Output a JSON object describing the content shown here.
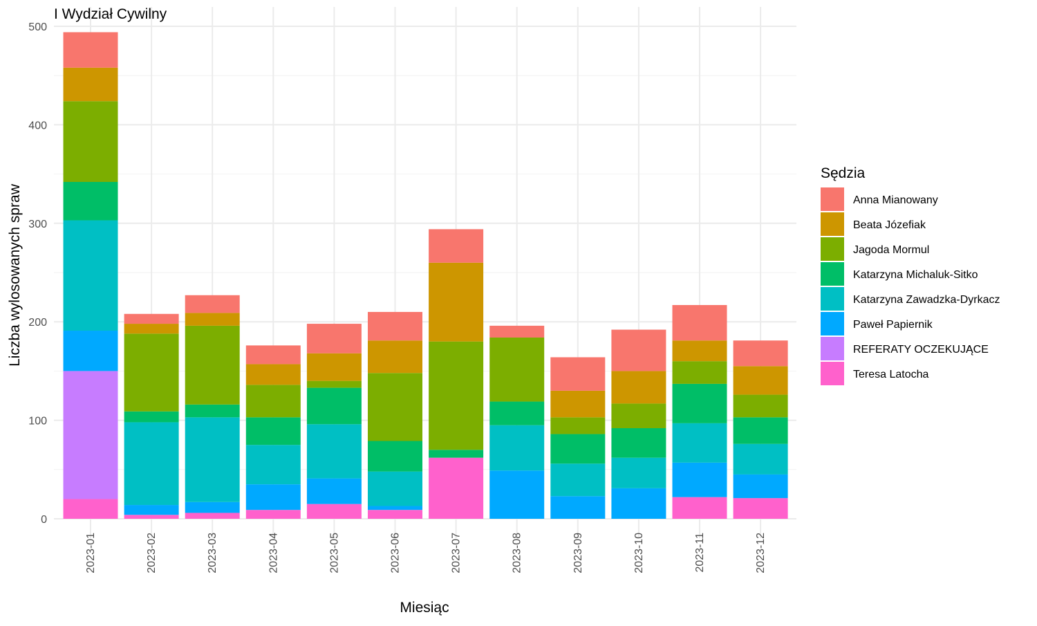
{
  "chart_data": {
    "type": "bar",
    "stacked": true,
    "title": "I Wydział Cywilny",
    "xlabel": "Miesiąc",
    "ylabel": "Liczba wylosowanych spraw",
    "ylim": [
      0,
      500
    ],
    "yticks": [
      0,
      100,
      200,
      300,
      400,
      500
    ],
    "grid": true,
    "legend_title": "Sędzia",
    "legend_position": "right",
    "categories": [
      "2023-01",
      "2023-02",
      "2023-03",
      "2023-04",
      "2023-05",
      "2023-06",
      "2023-07",
      "2023-08",
      "2023-09",
      "2023-10",
      "2023-11",
      "2023-12"
    ],
    "series": [
      {
        "name": "Anna Mianowany",
        "color": "#F8766D",
        "values": [
          36,
          10,
          18,
          19,
          30,
          29,
          34,
          12,
          34,
          42,
          36,
          26
        ]
      },
      {
        "name": "Beata Józefiak",
        "color": "#CD9600",
        "values": [
          34,
          10,
          13,
          21,
          28,
          33,
          80,
          0,
          27,
          33,
          21,
          29
        ]
      },
      {
        "name": "Jagoda Mormul",
        "color": "#7CAE00",
        "values": [
          82,
          79,
          80,
          33,
          7,
          69,
          110,
          65,
          17,
          25,
          23,
          23
        ]
      },
      {
        "name": "Katarzyna Michaluk-Sitko",
        "color": "#00BE67",
        "values": [
          39,
          11,
          13,
          28,
          37,
          31,
          8,
          24,
          30,
          30,
          40,
          27
        ]
      },
      {
        "name": "Katarzyna Zawadzka-Dyrkacz",
        "color": "#00BFC4",
        "values": [
          112,
          84,
          86,
          40,
          55,
          35,
          0,
          46,
          33,
          31,
          40,
          31
        ]
      },
      {
        "name": "Paweł Papiernik",
        "color": "#00A9FF",
        "values": [
          41,
          10,
          11,
          26,
          26,
          4,
          0,
          49,
          23,
          31,
          35,
          24
        ]
      },
      {
        "name": "REFERATY OCZEKUJĄCE",
        "color": "#C77CFF",
        "values": [
          130,
          0,
          0,
          0,
          0,
          0,
          0,
          0,
          0,
          0,
          0,
          0
        ]
      },
      {
        "name": "Teresa Latocha",
        "color": "#FF61CC",
        "values": [
          20,
          4,
          6,
          9,
          15,
          9,
          62,
          0,
          0,
          0,
          22,
          21
        ]
      }
    ]
  }
}
